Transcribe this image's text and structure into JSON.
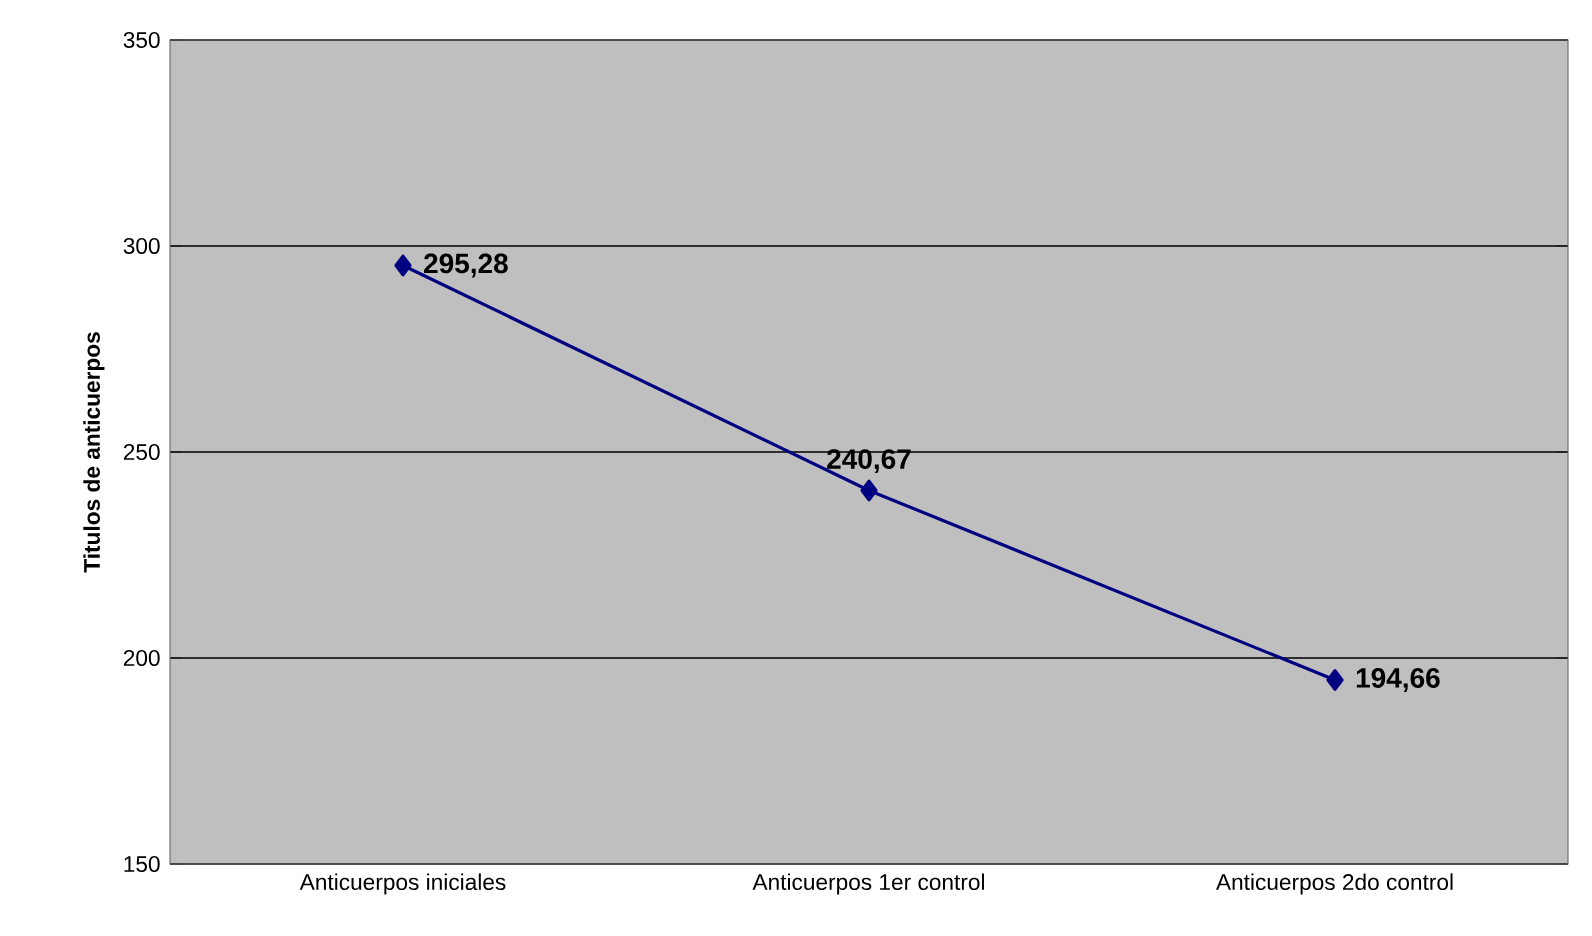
{
  "chart_data": {
    "type": "line",
    "ylabel": "Titulos de anticuerpos",
    "categories": [
      "Anticuerpos iniciales",
      "Anticuerpos 1er control",
      "Anticuerpos 2do control"
    ],
    "series": [
      {
        "color": "#000080",
        "values": [
          295.28,
          240.67,
          194.66
        ],
        "value_labels": [
          "295,28",
          "240,67",
          "194,66"
        ]
      }
    ],
    "ylim": [
      150,
      350
    ],
    "yticks": [
      150,
      200,
      250,
      300,
      350
    ],
    "grid": "y",
    "marker": "diamond",
    "line_style": "solid"
  }
}
